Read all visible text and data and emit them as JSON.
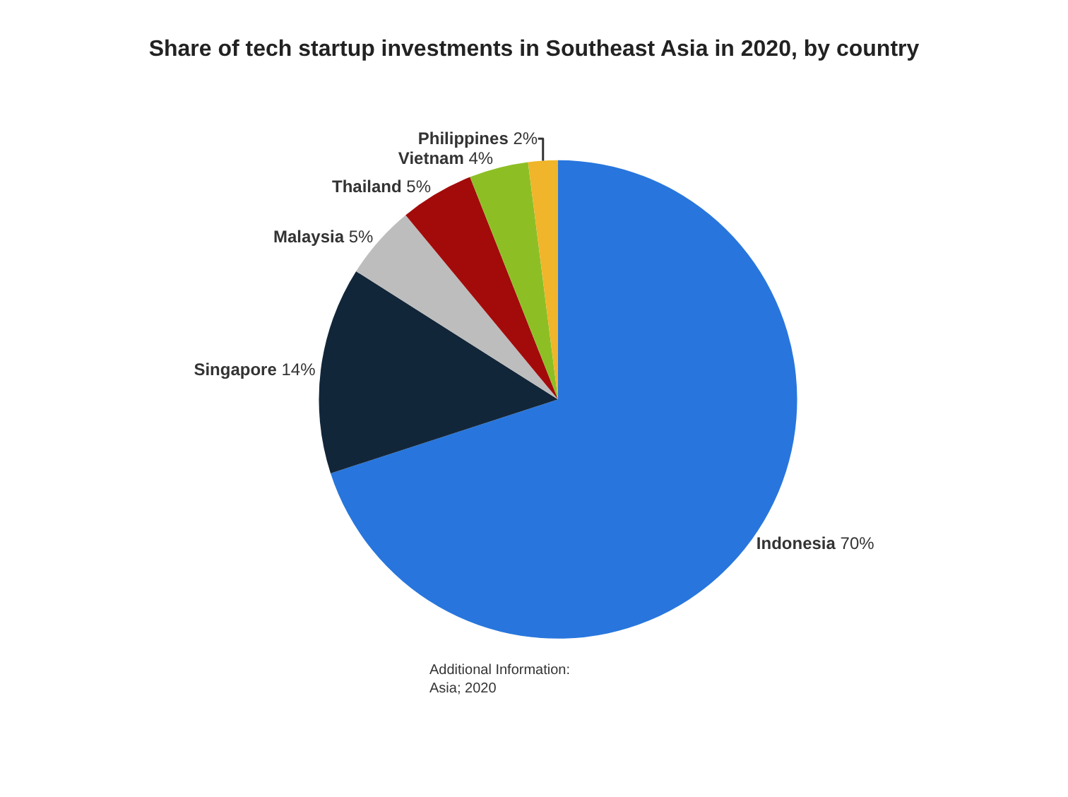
{
  "chart_data": {
    "type": "pie",
    "title": "Share of tech startup investments in Southeast Asia in 2020, by country",
    "categories": [
      "Indonesia",
      "Singapore",
      "Malaysia",
      "Thailand",
      "Vietnam",
      "Philippines"
    ],
    "values": [
      70,
      14,
      5,
      5,
      4,
      2
    ],
    "value_labels": [
      "70%",
      "14%",
      "5%",
      "5%",
      "4%",
      "2%"
    ],
    "colors": [
      "#2876dd",
      "#12263a",
      "#bdbdbd",
      "#a30b0b",
      "#8dbf25",
      "#f0b52a"
    ],
    "legend": false,
    "annotations": [
      "Additional Information:\nAsia; 2020"
    ]
  }
}
